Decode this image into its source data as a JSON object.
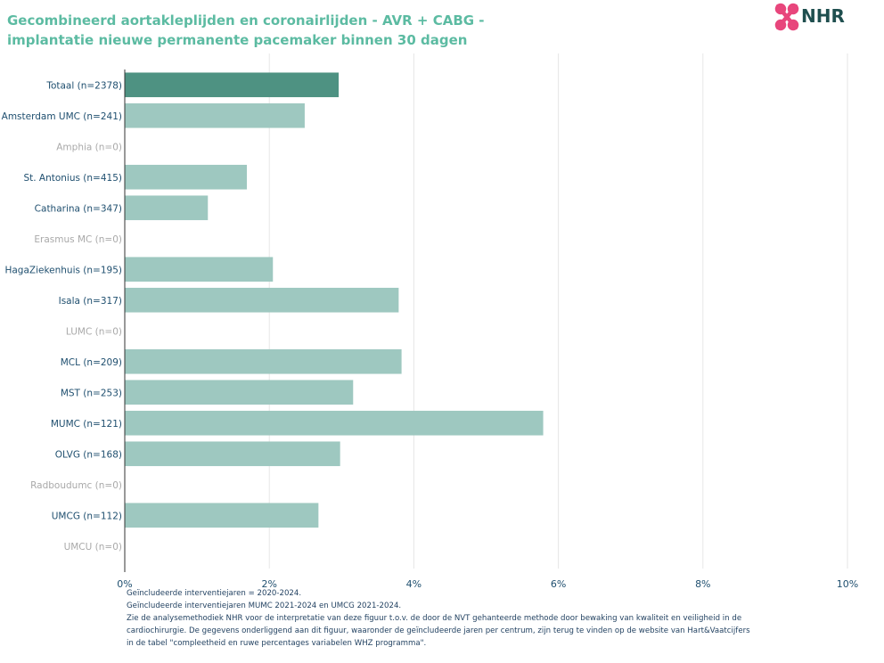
{
  "title_lines": [
    "Gecombineerd aortakleplijden en coronairlijden - AVR + CABG -",
    "implantatie nieuwe permanente pacemaker binnen 30 dagen"
  ],
  "logo": {
    "text": "NHR",
    "icon": "nhr-logo-icon",
    "colors": {
      "mark": "#e8467c",
      "text": "#1f4f4f"
    }
  },
  "colors": {
    "title": "#5cbba2",
    "bar_total": "#4e9282",
    "bar": "#9ec8c0",
    "label": "#1f4f6f",
    "label_zero": "#a9a9a9",
    "grid": "#e6e6e6",
    "axis": "#333333"
  },
  "chart_data": {
    "type": "bar",
    "orientation": "horizontal",
    "categories": [
      "Totaal (n=2378)",
      "Amsterdam UMC (n=241)",
      "Amphia (n=0)",
      "St. Antonius (n=415)",
      "Catharina (n=347)",
      "Erasmus MC (n=0)",
      "HagaZiekenhuis (n=195)",
      "Isala (n=317)",
      "LUMC (n=0)",
      "MCL (n=209)",
      "MST (n=253)",
      "MUMC (n=121)",
      "OLVG (n=168)",
      "Radboudumc (n=0)",
      "UMCG (n=112)",
      "UMCU (n=0)"
    ],
    "values": [
      2.96,
      2.49,
      0,
      1.69,
      1.15,
      0,
      2.05,
      3.79,
      0,
      3.83,
      3.16,
      5.79,
      2.98,
      0,
      2.68,
      0
    ],
    "highlight_index": 0,
    "xlim": [
      0,
      10
    ],
    "x_ticks": [
      0,
      2,
      4,
      6,
      8,
      10
    ],
    "x_tick_labels": [
      "0%",
      "2%",
      "4%",
      "6%",
      "8%",
      "10%"
    ],
    "grid": true
  },
  "notes": [
    "Geïncludeerde interventiejaren = 2020-2024.",
    "Geïncludeerde interventiejaren MUMC 2021-2024 en UMCG 2021-2024.",
    "Zie de analysemethodiek NHR voor de interpretatie van deze figuur t.o.v. de door de NVT gehanteerde methode door bewaking van kwaliteit en veiligheid in de",
    " cardiochirurgie. De gegevens onderliggend aan dit figuur, waaronder de geïncludeerde jaren per centrum, zijn terug te vinden op de website van Hart&Vaatcijfers",
    " in de tabel \"compleetheid en ruwe percentages variabelen WHZ programma\"."
  ]
}
